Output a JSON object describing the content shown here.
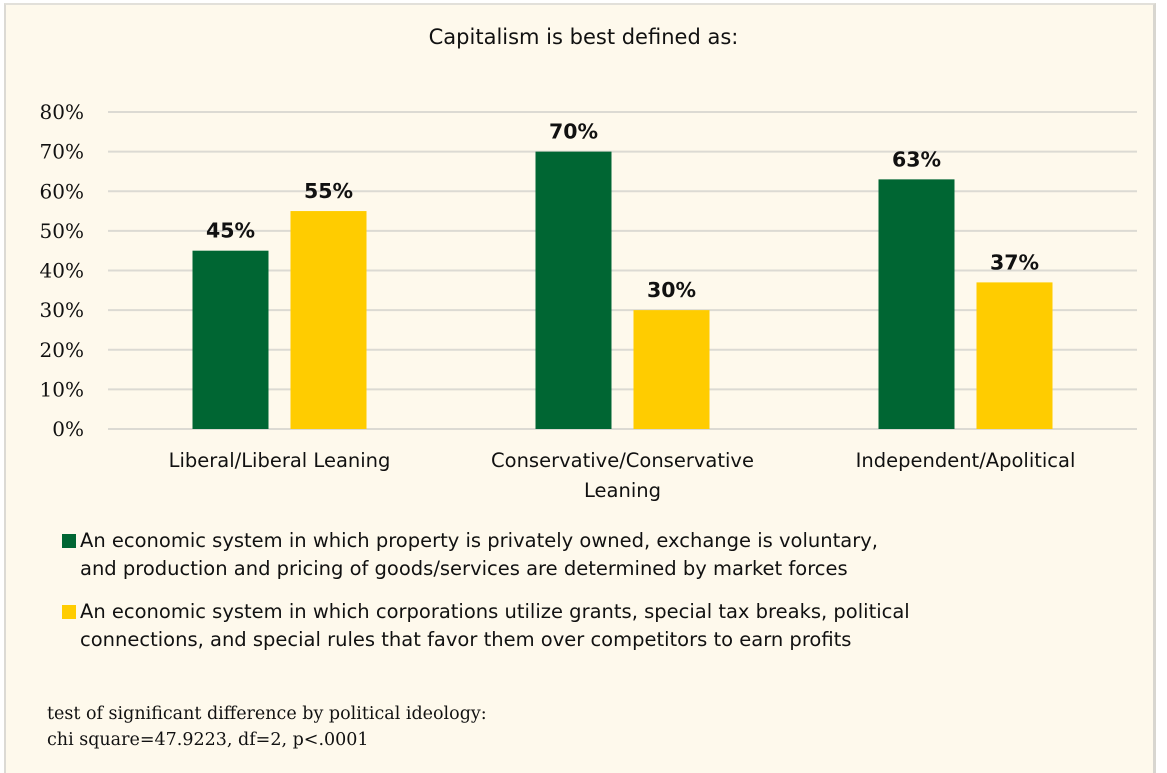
{
  "chart_data": {
    "type": "bar",
    "title": "Capitalism is best defined as:",
    "categories": [
      [
        "Liberal/Liberal Leaning"
      ],
      [
        "Conservative/Conservative",
        "Leaning"
      ],
      [
        "Independent/Apolitical"
      ]
    ],
    "series": [
      {
        "name": "An economic system in which property is privately owned, exchange is voluntary, and production and pricing of goods/services are determined by market forces",
        "legend_lines": [
          "An economic system in which property is privately owned, exchange is voluntary,",
          "and production and pricing of goods/services are determined by market forces"
        ],
        "color": "#006633",
        "values": [
          45,
          70,
          63
        ],
        "labels": [
          "45%",
          "70%",
          "63%"
        ]
      },
      {
        "name": "An economic system in which corporations utilize grants, special tax breaks, political connections, and special rules that favor them over competitors to earn profits",
        "legend_lines": [
          "An economic system in which corporations utilize grants, special tax breaks, political",
          "connections, and special rules that favor them over competitors to earn profits"
        ],
        "color": "#ffcc00",
        "values": [
          55,
          30,
          37
        ],
        "labels": [
          "55%",
          "30%",
          "37%"
        ]
      }
    ],
    "yticks": [
      "0%",
      "10%",
      "20%",
      "30%",
      "40%",
      "50%",
      "60%",
      "70%",
      "80%"
    ],
    "ylim": [
      0,
      80
    ],
    "xlabel": "",
    "ylabel": "",
    "grid": true,
    "legend_position": "bottom"
  },
  "footnote": {
    "line1": "test of significant difference by political ideology:",
    "line2": "chi square=47.9223, df=2, p<.0001"
  }
}
